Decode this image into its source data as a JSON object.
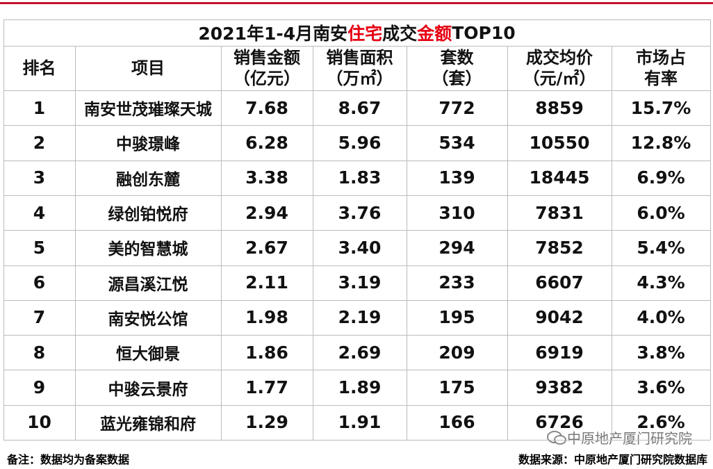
{
  "table": {
    "title": [
      "2021年1-4月南安",
      "住宅",
      "成交",
      "金额",
      "TOP10"
    ],
    "header": [
      [
        "排名"
      ],
      [
        "项目"
      ],
      [
        "销售金额",
        "（亿元）"
      ],
      [
        "销售面积",
        "（万㎡）"
      ],
      [
        "套数",
        "（套）"
      ],
      [
        "成交均价",
        "（元/㎡）"
      ],
      [
        "市场占",
        "有率"
      ]
    ],
    "rows": [
      [
        "1",
        "南安世茂璀璨天城",
        "7.68",
        "8.67",
        "772",
        "8859",
        "15.7%"
      ],
      [
        "2",
        "中骏璟峰",
        "6.28",
        "5.96",
        "534",
        "10550",
        "12.8%"
      ],
      [
        "3",
        "融创东麓",
        "3.38",
        "1.83",
        "139",
        "18445",
        "6.9%"
      ],
      [
        "4",
        "绿创铂悦府",
        "2.94",
        "3.76",
        "310",
        "7831",
        "6.0%"
      ],
      [
        "5",
        "美的智慧城",
        "2.67",
        "3.40",
        "294",
        "7852",
        "5.4%"
      ],
      [
        "6",
        "源昌溪江悦",
        "2.11",
        "3.19",
        "233",
        "6607",
        "4.3%"
      ],
      [
        "7",
        "南安悦公馆",
        "1.98",
        "2.19",
        "195",
        "9042",
        "4.0%"
      ],
      [
        "8",
        "恒大御景",
        "1.86",
        "2.69",
        "209",
        "6919",
        "3.8%"
      ],
      [
        "9",
        "中骏云景府",
        "1.77",
        "1.89",
        "175",
        "9382",
        "3.6%"
      ],
      [
        "10",
        "蓝光雍锦和府",
        "1.29",
        "1.91",
        "166",
        "6726",
        "2.6%"
      ]
    ]
  },
  "footer": {
    "note": "备注：数据均为备案数据",
    "source": "数据来源：中原地产厦门研究院数据库",
    "watermark": "中原地产厦门研究院"
  }
}
